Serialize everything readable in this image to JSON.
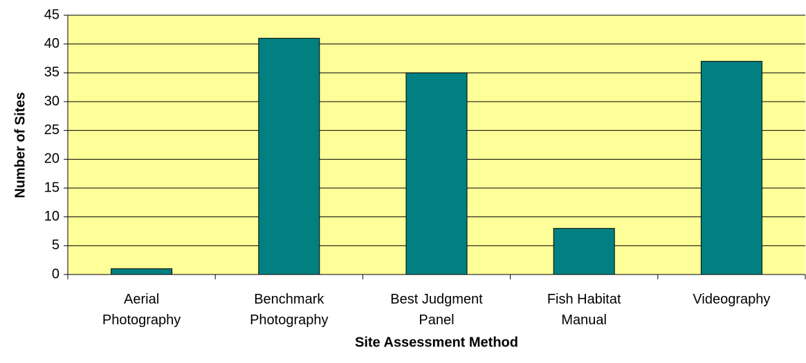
{
  "chart_data": {
    "type": "bar",
    "x_label": "Site Assessment Method",
    "y_label": "Number of Sites",
    "categories": [
      "Aerial Photography",
      "Benchmark Photography",
      "Best Judgment Panel",
      "Fish Habitat Manual",
      "Videography"
    ],
    "values": [
      1,
      41,
      35,
      8,
      37
    ],
    "color": "#008080",
    "background": "#ffff99",
    "ylim": [
      0,
      45
    ],
    "yticks": [
      0,
      5,
      10,
      15,
      20,
      25,
      30,
      35,
      40,
      45
    ],
    "grid": true
  }
}
